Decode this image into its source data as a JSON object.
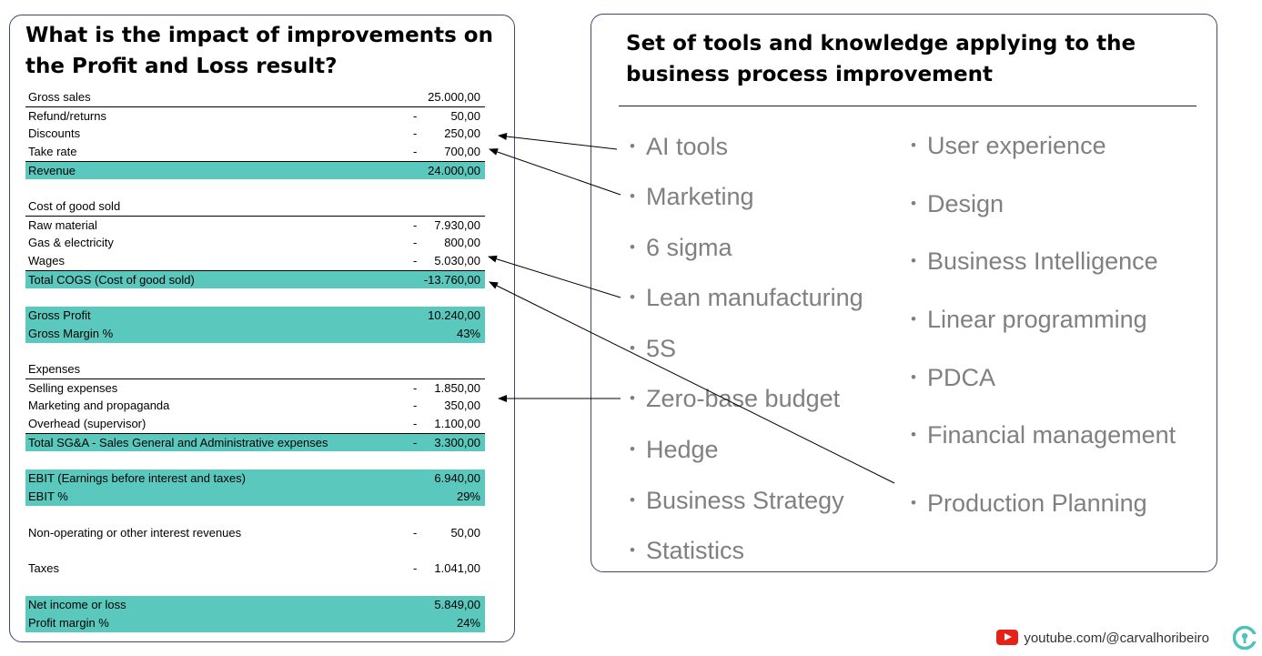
{
  "left": {
    "title": "What is the impact of improvements on the Profit and Loss result?",
    "rows": [
      {
        "label": "Gross sales",
        "sign": "",
        "value": "25.000,00"
      },
      {
        "label": "Refund/returns",
        "sign": "-",
        "value": "50,00"
      },
      {
        "label": "Discounts",
        "sign": "-",
        "value": "250,00"
      },
      {
        "label": "Take rate",
        "sign": "-",
        "value": "700,00"
      },
      {
        "label": "Revenue",
        "sign": "",
        "value": "24.000,00"
      },
      {
        "label": "Cost of good sold",
        "sign": "",
        "value": ""
      },
      {
        "label": "Raw material",
        "sign": "-",
        "value": "7.930,00"
      },
      {
        "label": "Gas & electricity",
        "sign": "-",
        "value": "800,00"
      },
      {
        "label": "Wages",
        "sign": "-",
        "value": "5.030,00"
      },
      {
        "label": "Total COGS (Cost of good sold)",
        "sign": "",
        "value": "-13.760,00"
      },
      {
        "label": "Gross Profit",
        "sign": "",
        "value": "10.240,00"
      },
      {
        "label": "Gross Margin %",
        "sign": "",
        "value": "43%"
      },
      {
        "label": "Expenses",
        "sign": "",
        "value": ""
      },
      {
        "label": "Selling expenses",
        "sign": "-",
        "value": "1.850,00"
      },
      {
        "label": "Marketing and propaganda",
        "sign": "-",
        "value": "350,00"
      },
      {
        "label": "Overhead (supervisor)",
        "sign": "-",
        "value": "1.100,00"
      },
      {
        "label": "Total SG&A  - Sales General and Administrative expenses",
        "sign": "-",
        "value": "3.300,00"
      },
      {
        "label": "EBIT (Earnings before interest and taxes)",
        "sign": "",
        "value": "6.940,00"
      },
      {
        "label": "EBIT %",
        "sign": "",
        "value": "29%"
      },
      {
        "label": "Non-operating or other interest revenues",
        "sign": "-",
        "value": "50,00"
      },
      {
        "label": "Taxes",
        "sign": "-",
        "value": "1.041,00"
      },
      {
        "label": "Net income or loss",
        "sign": "",
        "value": "5.849,00"
      },
      {
        "label": "Profit margin %",
        "sign": "",
        "value": "24%"
      }
    ],
    "highlight_color": "#5bc8be"
  },
  "right": {
    "title": "Set of tools and knowledge applying to the business process improvement",
    "bullet": "•",
    "col1": [
      "AI tools",
      "Marketing",
      "6 sigma",
      "Lean manufacturing",
      "5S",
      "Zero-base budget",
      "Hedge",
      "Business Strategy",
      "Statistics"
    ],
    "col2": [
      "User experience",
      "Design",
      "Business Intelligence",
      "Linear programming",
      "PDCA",
      "Financial management",
      "Production Planning"
    ],
    "text_color": "#808080"
  },
  "footer": {
    "channel": "youtube.com/@carvalhoribeiro",
    "logo_icon": "channel-logo-icon",
    "youtube_icon": "youtube-icon"
  }
}
